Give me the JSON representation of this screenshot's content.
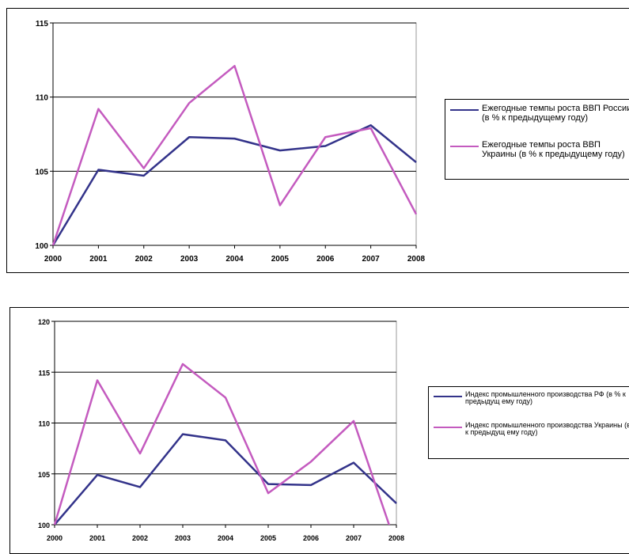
{
  "colors": {
    "russia": "#33338a",
    "ukraine": "#c45bbf",
    "grid": "#000000"
  },
  "chart_data": [
    {
      "type": "line",
      "categories": [
        "2000",
        "2001",
        "2002",
        "2003",
        "2004",
        "2005",
        "2006",
        "2007",
        "2008"
      ],
      "ylim": [
        100,
        115
      ],
      "yticks": [
        "100",
        "105",
        "110",
        "115"
      ],
      "grid": true,
      "legend_position": "right",
      "series": [
        {
          "name": "Ежегодные темпы роста ВВП России (в % к предыдущему году)",
          "color": "#33338a",
          "values": [
            100,
            105.1,
            104.7,
            107.3,
            107.2,
            106.4,
            106.7,
            108.1,
            105.6
          ]
        },
        {
          "name": "Ежегодные темпы роста ВВП Украины (в % к предыдущему году)",
          "color": "#c45bbf",
          "values": [
            100,
            109.2,
            105.2,
            109.6,
            112.1,
            102.7,
            107.3,
            107.9,
            102.1
          ]
        }
      ]
    },
    {
      "type": "line",
      "categories": [
        "2000",
        "2001",
        "2002",
        "2003",
        "2004",
        "2005",
        "2006",
        "2007",
        "2008"
      ],
      "ylim": [
        100,
        120
      ],
      "yticks": [
        "100",
        "105",
        "110",
        "115",
        "120"
      ],
      "grid": true,
      "legend_position": "right",
      "series": [
        {
          "name": "Индекс промышленного производства РФ (в % к предыдущ ему году)",
          "color": "#33338a",
          "values": [
            100,
            104.9,
            103.7,
            108.9,
            108.3,
            104.0,
            103.9,
            106.1,
            102.1
          ]
        },
        {
          "name": "Индекс промышленного производства Украины (в % к предыдущ ему году)",
          "color": "#c45bbf",
          "values": [
            100,
            114.2,
            107.0,
            115.8,
            112.5,
            103.1,
            106.2,
            110.2,
            97.9
          ]
        }
      ]
    }
  ]
}
